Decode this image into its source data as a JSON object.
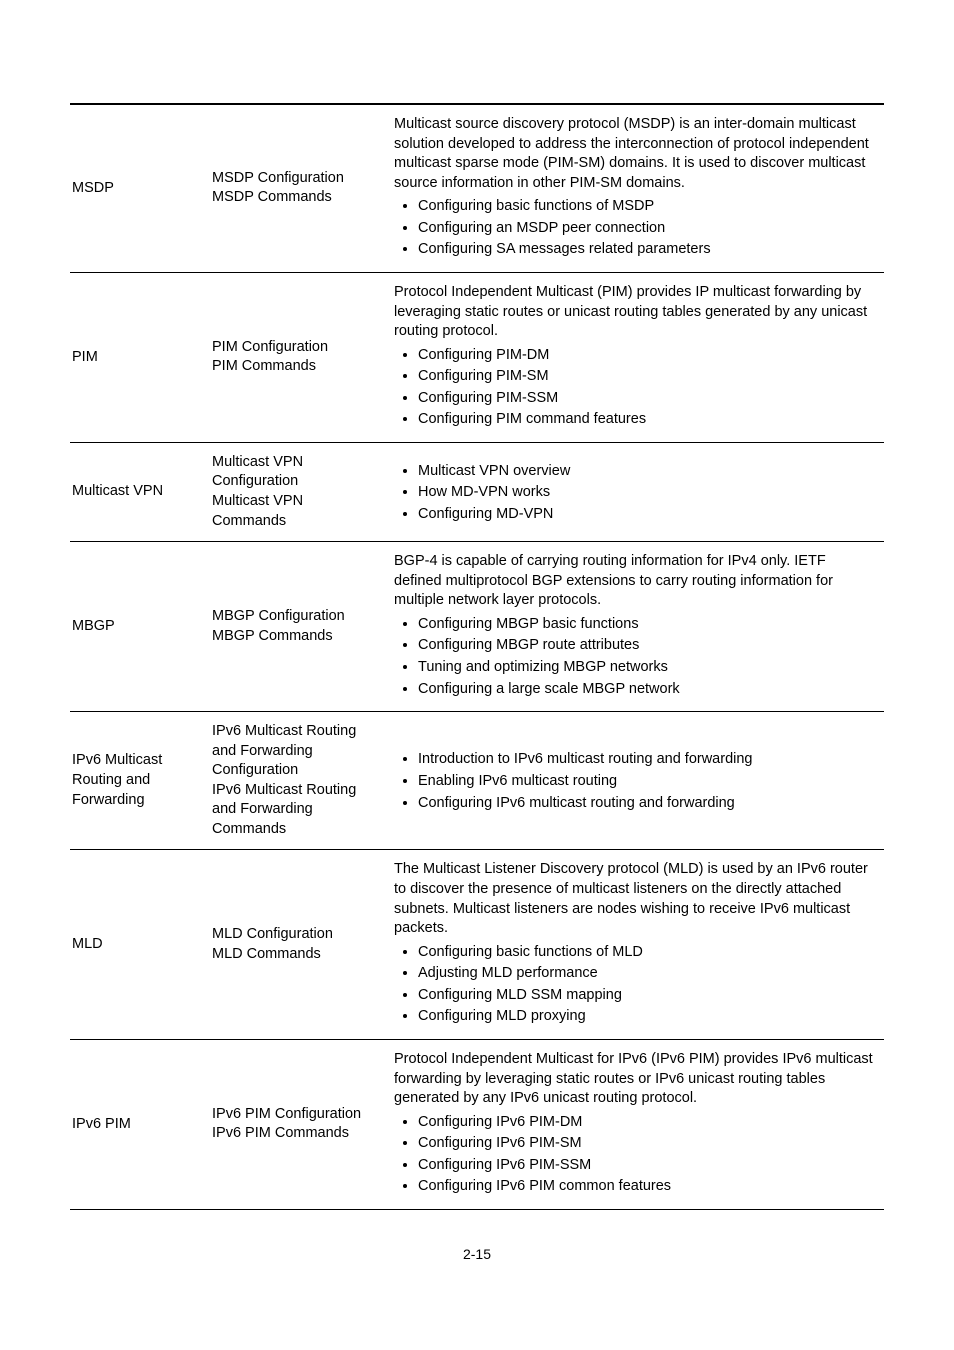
{
  "footer": "2-15",
  "rows": [
    {
      "c1": "MSDP",
      "c2lines": [
        "MSDP Configuration",
        "MSDP Commands"
      ],
      "c3para": "Multicast source discovery protocol (MSDP) is an inter-domain multicast solution developed to address the interconnection of protocol independent multicast sparse mode (PIM-SM) domains. It is used to discover multicast source information in other PIM-SM domains.",
      "c3bullets": [
        "Configuring basic functions of MSDP",
        "Configuring an MSDP peer connection",
        "Configuring SA messages related parameters"
      ]
    },
    {
      "c1": "PIM",
      "c2lines": [
        "PIM Configuration",
        "PIM Commands"
      ],
      "c3para": "Protocol Independent Multicast (PIM) provides IP multicast forwarding by leveraging static routes or unicast routing tables generated by any unicast routing protocol.",
      "c3bullets": [
        "Configuring PIM-DM",
        "Configuring PIM-SM",
        "Configuring PIM-SSM",
        "Configuring PIM command features"
      ]
    },
    {
      "c1": "Multicast VPN",
      "c2lines": [
        "Multicast VPN Configuration",
        "Multicast VPN Commands"
      ],
      "c3para": null,
      "c3bullets": [
        "Multicast VPN overview",
        "How MD-VPN works",
        "Configuring MD-VPN"
      ]
    },
    {
      "c1": "MBGP",
      "c2lines": [
        "MBGP Configuration",
        "MBGP Commands"
      ],
      "c3para": "BGP-4 is capable of carrying routing information for IPv4 only. IETF defined multiprotocol BGP extensions to carry routing information for multiple network layer protocols.",
      "c3bullets": [
        "Configuring MBGP basic functions",
        "Configuring MBGP route attributes",
        "Tuning and optimizing MBGP networks",
        "Configuring a large scale MBGP network"
      ]
    },
    {
      "c1": "IPv6 Multicast Routing and Forwarding",
      "c2lines": [
        "IPv6 Multicast Routing and Forwarding Configuration",
        "IPv6 Multicast Routing and Forwarding Commands"
      ],
      "c3para": null,
      "c3bullets": [
        "Introduction to IPv6 multicast routing and forwarding",
        "Enabling IPv6 multicast routing",
        "Configuring IPv6 multicast routing and forwarding"
      ]
    },
    {
      "c1": "MLD",
      "c2lines": [
        "MLD Configuration",
        "MLD Commands"
      ],
      "c3para": "The Multicast Listener Discovery protocol (MLD) is used by an IPv6 router to discover the presence of multicast listeners on the directly attached subnets. Multicast listeners are nodes wishing to receive IPv6 multicast packets.",
      "c3bullets": [
        "Configuring basic functions of MLD",
        "Adjusting MLD performance",
        "Configuring MLD SSM mapping",
        "Configuring MLD proxying"
      ]
    },
    {
      "c1": "IPv6 PIM",
      "c2lines": [
        "IPv6 PIM Configuration",
        "IPv6 PIM Commands"
      ],
      "c3para": "Protocol Independent Multicast for IPv6 (IPv6 PIM) provides IPv6 multicast forwarding by leveraging static routes or IPv6 unicast routing tables generated by any IPv6 unicast routing protocol.",
      "c3bullets": [
        "Configuring IPv6 PIM-DM",
        "Configuring IPv6 PIM-SM",
        "Configuring IPv6 PIM-SSM",
        "Configuring IPv6 PIM common features"
      ]
    }
  ]
}
